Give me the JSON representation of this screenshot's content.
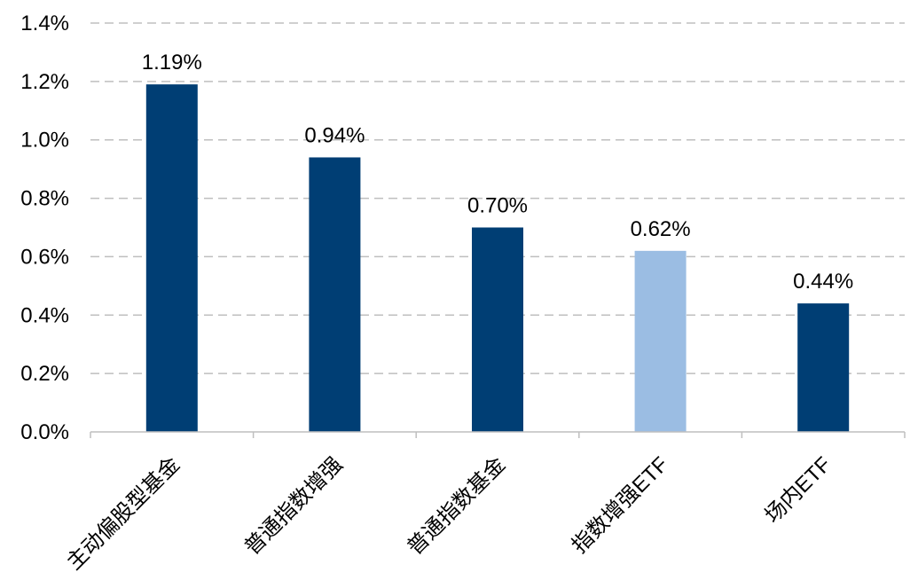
{
  "chart_data": {
    "type": "bar",
    "categories": [
      "主动偏股型基金",
      "普通指数增强",
      "普通指数基金",
      "指数增强ETF",
      "场内ETF"
    ],
    "values": [
      1.19,
      0.94,
      0.7,
      0.62,
      0.44
    ],
    "data_labels": [
      "1.19%",
      "0.94%",
      "0.70%",
      "0.62%",
      "0.44%"
    ],
    "bar_colors": [
      "#003e74",
      "#003e74",
      "#003e74",
      "#9bbde3",
      "#003e74"
    ],
    "ylim": [
      0,
      1.4
    ],
    "yticks": [
      0,
      0.2,
      0.4,
      0.6,
      0.8,
      1.0,
      1.2,
      1.4
    ],
    "ytick_labels": [
      "0.0%",
      "0.2%",
      "0.4%",
      "0.6%",
      "0.8%",
      "1.0%",
      "1.2%",
      "1.4%"
    ],
    "grid": true,
    "grid_style": "dashed",
    "xtick_rotation": -45
  }
}
